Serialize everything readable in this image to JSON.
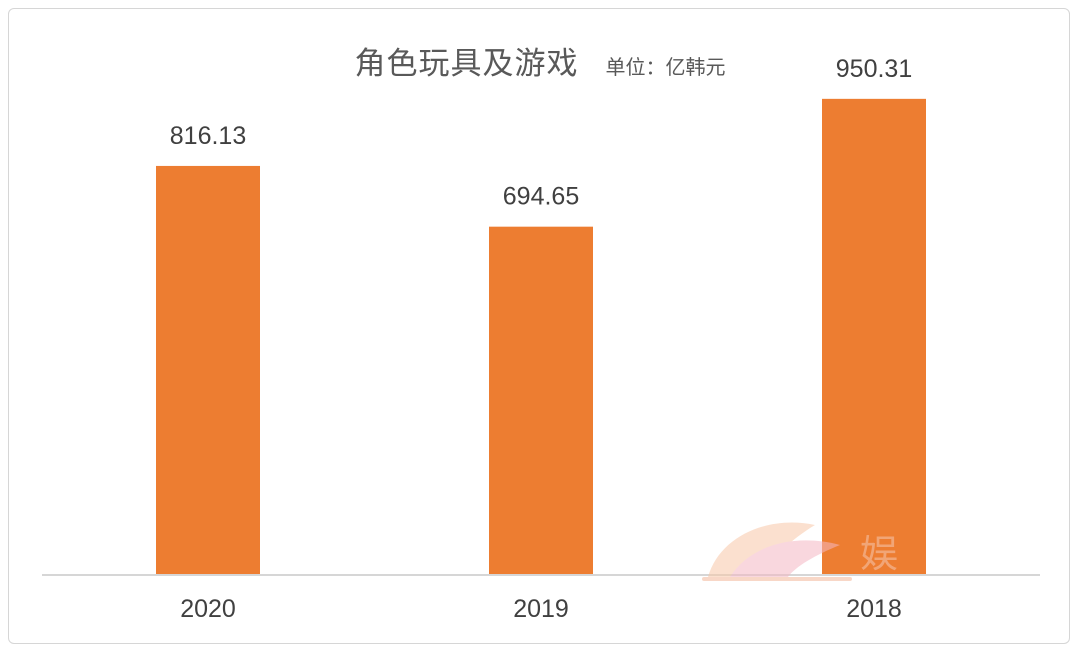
{
  "chart_data": {
    "type": "bar",
    "title": "角色玩具及游戏",
    "subtitle": "单位：亿韩元",
    "categories": [
      "2020",
      "2019",
      "2018"
    ],
    "values": [
      816.13,
      694.65,
      950.31
    ],
    "data_labels": [
      "816.13",
      "694.65",
      "950.31"
    ],
    "ylim": [
      0,
      1000
    ],
    "bar_color": "#ED7D31",
    "grid": false,
    "legend": "none"
  },
  "watermark": {
    "text": "娱",
    "color": "#F4A582"
  }
}
